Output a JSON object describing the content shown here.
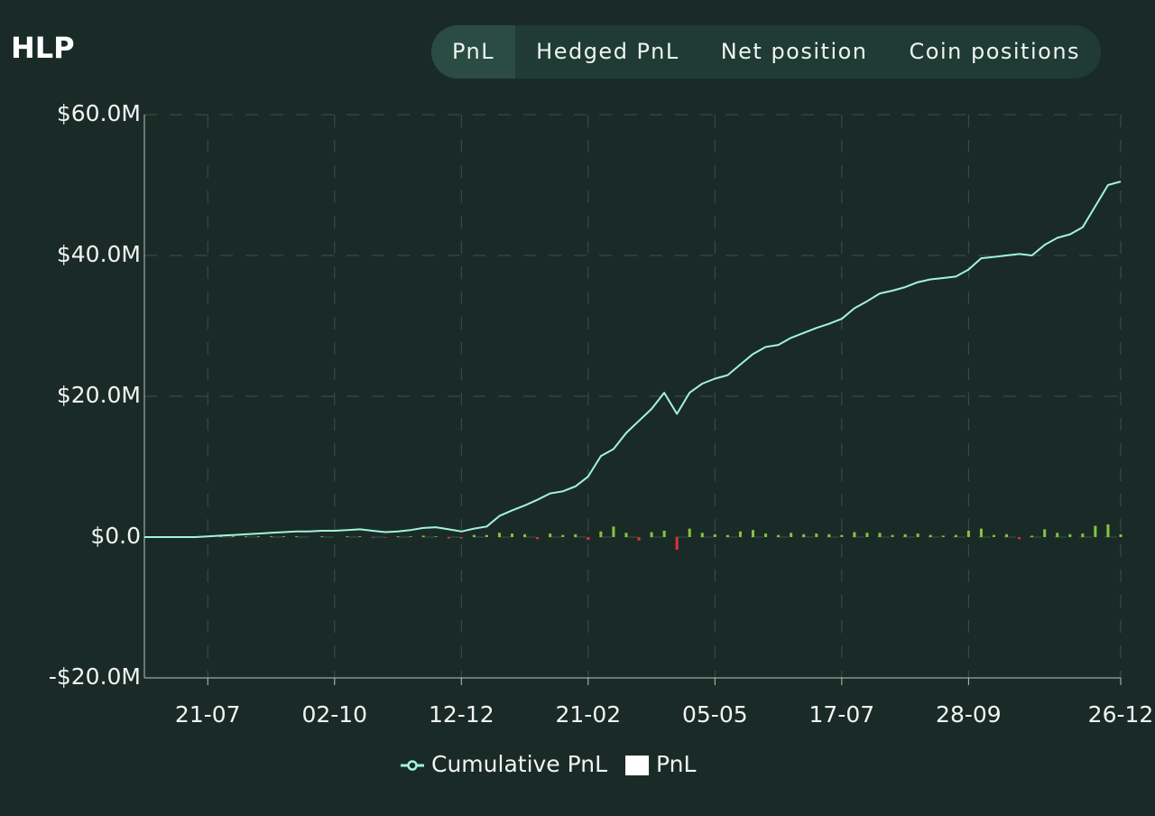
{
  "header": {
    "title": "HLP"
  },
  "tabs": {
    "items": [
      "PnL",
      "Hedged PnL",
      "Net position",
      "Coin positions"
    ],
    "active": 0
  },
  "chart_data": {
    "type": "combo",
    "categories": [
      null,
      null,
      null,
      null,
      null,
      "21-07",
      null,
      null,
      null,
      null,
      null,
      null,
      null,
      null,
      null,
      "02-10",
      null,
      null,
      null,
      null,
      null,
      null,
      null,
      null,
      null,
      "12-12",
      null,
      null,
      null,
      null,
      null,
      null,
      null,
      null,
      null,
      "21-02",
      null,
      null,
      null,
      null,
      null,
      null,
      null,
      null,
      null,
      "05-05",
      null,
      null,
      null,
      null,
      null,
      null,
      null,
      null,
      null,
      "17-07",
      null,
      null,
      null,
      null,
      null,
      null,
      null,
      null,
      null,
      "28-09",
      null,
      null,
      null,
      null,
      null,
      null,
      null,
      null,
      null,
      null,
      null,
      "26-12"
    ],
    "series": [
      {
        "name": "Cumulative PnL",
        "type": "line",
        "color": "#a3f3de",
        "values": [
          0,
          0,
          0,
          0,
          0,
          0.1,
          0.2,
          0.3,
          0.4,
          0.5,
          0.6,
          0.7,
          0.8,
          0.8,
          0.9,
          0.9,
          1.0,
          1.1,
          0.9,
          0.7,
          0.8,
          1.0,
          1.3,
          1.4,
          1.1,
          0.8,
          1.2,
          1.5,
          3.0,
          3.8,
          4.5,
          5.3,
          6.2,
          6.5,
          7.2,
          8.6,
          11.5,
          12.5,
          14.8,
          16.5,
          18.2,
          20.5,
          17.5,
          20.5,
          21.8,
          22.5,
          23.0,
          24.5,
          26.0,
          27.0,
          27.3,
          28.3,
          29.0,
          29.7,
          30.3,
          31.0,
          32.5,
          33.5,
          34.6,
          35.0,
          35.5,
          36.2,
          36.6,
          36.8,
          37.0,
          38.0,
          39.6,
          39.8,
          40.0,
          40.2,
          40.0,
          41.5,
          42.5,
          43.0,
          44.0,
          47.0,
          50.0,
          50.5
        ]
      },
      {
        "name": "PnL",
        "type": "bar",
        "color": "#ffffff",
        "positive_color": "#86c440",
        "negative_color": "#e0303a",
        "values": [
          0,
          0,
          0,
          0,
          0,
          0.1,
          0.1,
          0.1,
          0.1,
          0.1,
          0.1,
          0.1,
          0.1,
          0,
          0.1,
          0,
          0.1,
          0.1,
          -0.1,
          -0.1,
          0.1,
          0.1,
          0.2,
          0.1,
          -0.2,
          -0.2,
          0.3,
          0.3,
          0.6,
          0.5,
          0.4,
          -0.3,
          0.5,
          0.3,
          0.4,
          -0.4,
          0.8,
          1.5,
          0.6,
          -0.5,
          0.7,
          0.9,
          -1.8,
          1.2,
          0.6,
          0.4,
          0.3,
          0.8,
          1.0,
          0.5,
          0.3,
          0.6,
          0.4,
          0.5,
          0.4,
          0.3,
          0.7,
          0.6,
          0.6,
          0.3,
          0.4,
          0.5,
          0.3,
          0.2,
          0.3,
          0.9,
          1.2,
          0.3,
          0.4,
          -0.3,
          0.2,
          1.1,
          0.6,
          0.4,
          0.5,
          1.6,
          1.8,
          0.4
        ]
      }
    ],
    "ylim": [
      -20,
      60
    ],
    "yticks": [
      {
        "value": -20,
        "label": "-$20.0M"
      },
      {
        "value": 0,
        "label": "$0.0"
      },
      {
        "value": 20,
        "label": "$20.0M"
      },
      {
        "value": 40,
        "label": "$40.0M"
      },
      {
        "value": 60,
        "label": "$60.0M"
      }
    ],
    "grid": true
  }
}
